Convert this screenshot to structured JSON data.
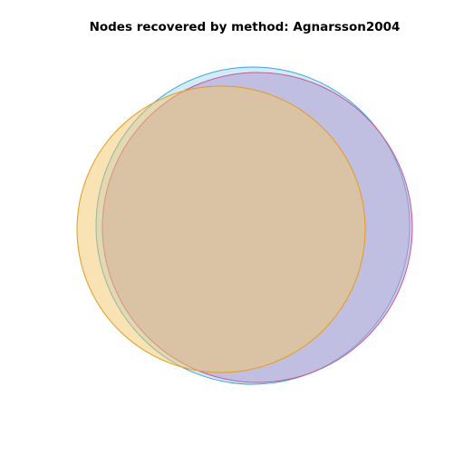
{
  "chart_data": {
    "type": "venn",
    "title": "Nodes recovered by method: Agnarsson2004",
    "sets": [
      {
        "name": "set-blue",
        "stroke": "#3aa6dc",
        "fill": "#87ceeb"
      },
      {
        "name": "set-purple",
        "stroke": "#c45a9c",
        "fill": "#b49ad0"
      },
      {
        "name": "set-orange",
        "stroke": "#e69a1a",
        "fill": "#f4c569"
      }
    ],
    "labels_shown": false
  }
}
